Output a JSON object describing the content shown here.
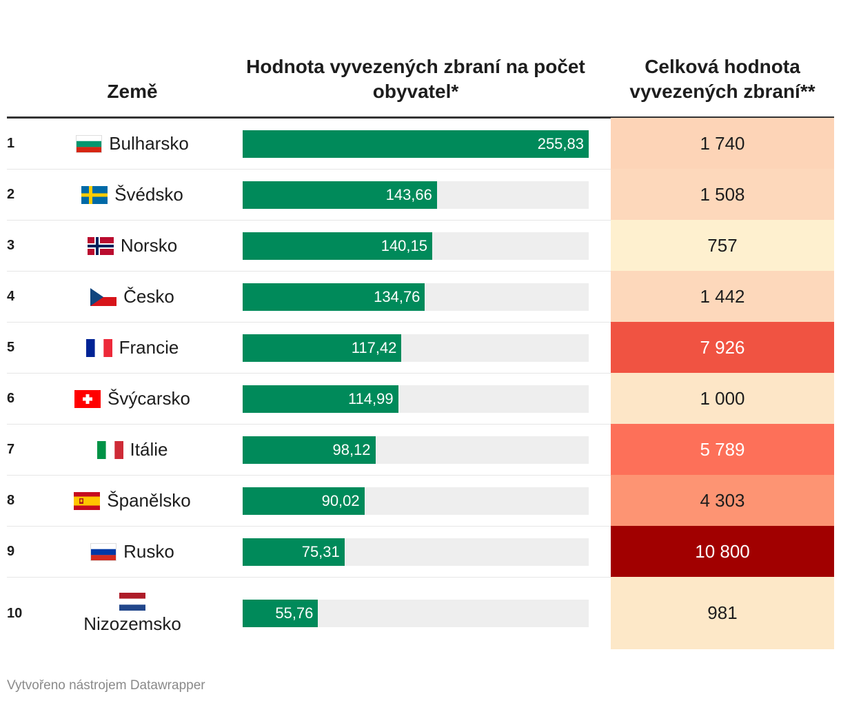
{
  "header": {
    "country": "Země",
    "per_capita": "Hodnota vyvezených zbraní na počet obyvatel*",
    "total": "Celková hodnota vyvezených zbraní**"
  },
  "rows": [
    {
      "rank": "1",
      "country": "Bulharsko",
      "flag": "flag-bg",
      "value": 255.83,
      "value_label": "255,83",
      "total": "1 740",
      "total_color": "#fdd4b7"
    },
    {
      "rank": "2",
      "country": "Švédsko",
      "flag": "flag-se",
      "value": 143.66,
      "value_label": "143,66",
      "total": "1 508",
      "total_color": "#fdd8bb"
    },
    {
      "rank": "3",
      "country": "Norsko",
      "flag": "flag-no",
      "value": 140.15,
      "value_label": "140,15",
      "total": "757",
      "total_color": "#fef0cf"
    },
    {
      "rank": "4",
      "country": "Česko",
      "flag": "flag-cz",
      "value": 134.76,
      "value_label": "134,76",
      "total": "1 442",
      "total_color": "#fdd8bb"
    },
    {
      "rank": "5",
      "country": "Francie",
      "flag": "flag-fr",
      "value": 117.42,
      "value_label": "117,42",
      "total": "7 926",
      "total_color": "#f05342",
      "total_text_color": "#ffffff"
    },
    {
      "rank": "6",
      "country": "Švýcarsko",
      "flag": "flag-ch",
      "value": 114.99,
      "value_label": "114,99",
      "total": "1 000",
      "total_color": "#fde6c7"
    },
    {
      "rank": "7",
      "country": "Itálie",
      "flag": "flag-it",
      "value": 98.12,
      "value_label": "98,12",
      "total": "5 789",
      "total_color": "#fd7059",
      "total_text_color": "#ffffff"
    },
    {
      "rank": "8",
      "country": "Španělsko",
      "flag": "flag-es",
      "value": 90.02,
      "value_label": "90,02",
      "total": "4 303",
      "total_color": "#fd9473"
    },
    {
      "rank": "9",
      "country": "Rusko",
      "flag": "flag-ru",
      "value": 75.31,
      "value_label": "75,31",
      "total": "10 800",
      "total_color": "#a10000",
      "total_text_color": "#ffffff"
    },
    {
      "rank": "10",
      "country": "Nizozemsko",
      "flag": "flag-nl",
      "value": 55.76,
      "value_label": "55,76",
      "total": "981",
      "total_color": "#fde8c8"
    }
  ],
  "chart_data": {
    "type": "table",
    "columns": [
      "Země",
      "Hodnota vyvezených zbraní na počet obyvatel*",
      "Celková hodnota vyvezených zbraní**"
    ],
    "categories": [
      "Bulharsko",
      "Švédsko",
      "Norsko",
      "Česko",
      "Francie",
      "Švýcarsko",
      "Itálie",
      "Španělsko",
      "Rusko",
      "Nizozemsko"
    ],
    "series": [
      {
        "name": "Hodnota vyvezených zbraní na počet obyvatel*",
        "values": [
          255.83,
          143.66,
          140.15,
          134.76,
          117.42,
          114.99,
          98.12,
          90.02,
          75.31,
          55.76
        ]
      },
      {
        "name": "Celková hodnota vyvezených zbraní**",
        "values": [
          1740,
          1508,
          757,
          1442,
          7926,
          1000,
          5789,
          4303,
          10800,
          981
        ]
      }
    ],
    "bar_max": 255.83,
    "bar_color": "#008a5a"
  },
  "footer": "Vytvořeno nástrojem Datawrapper"
}
